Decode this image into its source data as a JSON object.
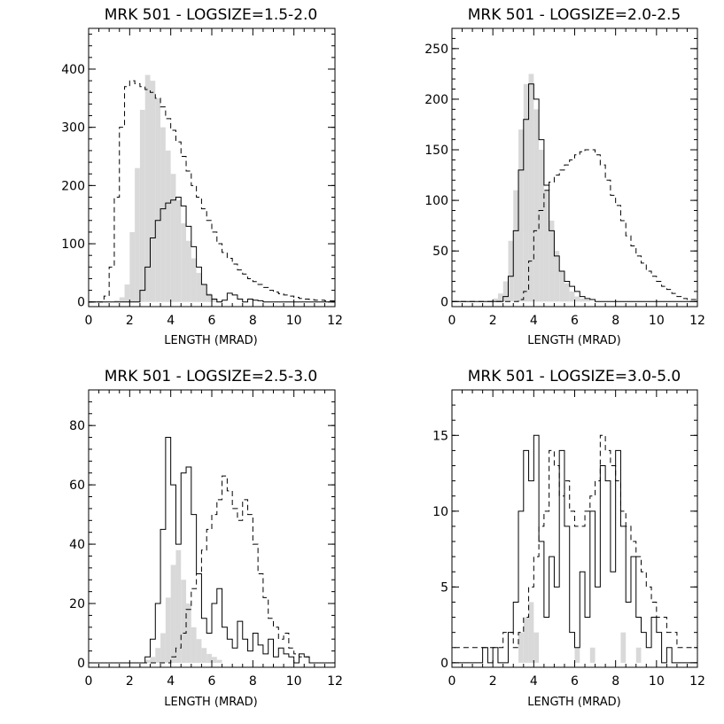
{
  "chart_data": [
    {
      "type": "histogram",
      "title": "MRK 501 - LOGSIZE=1.5-2.0",
      "xlabel": "LENGTH (MRAD)",
      "ylabel": "",
      "xlim": [
        0,
        12
      ],
      "ylim": [
        -8,
        470
      ],
      "xticks": [
        "0",
        "2",
        "4",
        "6",
        "8",
        "10",
        "12"
      ],
      "yticks": [
        "0",
        "100",
        "200",
        "300",
        "400"
      ],
      "bin_start": 0,
      "bin_width": 0.25,
      "series": [
        {
          "style": "shaded",
          "values": [
            0,
            0,
            0,
            0,
            0,
            3,
            8,
            30,
            120,
            230,
            330,
            390,
            380,
            350,
            300,
            260,
            220,
            175,
            135,
            105,
            75,
            50,
            30,
            15,
            5,
            2,
            0,
            0,
            0,
            0,
            0,
            0,
            0,
            0,
            0,
            0,
            0,
            0,
            0,
            0,
            0,
            0,
            0,
            0,
            0,
            0,
            0,
            0
          ]
        },
        {
          "style": "solid",
          "values": [
            0,
            0,
            0,
            0,
            0,
            0,
            0,
            0,
            0,
            0,
            20,
            60,
            110,
            140,
            160,
            170,
            175,
            180,
            165,
            130,
            95,
            60,
            30,
            12,
            5,
            0,
            3,
            15,
            12,
            5,
            0,
            5,
            3,
            2,
            0,
            0,
            0,
            0,
            0,
            0,
            0,
            0,
            0,
            0,
            0,
            0,
            0,
            0
          ]
        },
        {
          "style": "dashed",
          "values": [
            0,
            0,
            0,
            10,
            60,
            180,
            300,
            370,
            380,
            375,
            370,
            365,
            360,
            350,
            335,
            315,
            295,
            275,
            250,
            225,
            200,
            180,
            160,
            140,
            120,
            100,
            85,
            75,
            65,
            55,
            48,
            40,
            35,
            30,
            25,
            20,
            17,
            14,
            12,
            10,
            8,
            6,
            5,
            4,
            3,
            3,
            2,
            2
          ]
        }
      ]
    },
    {
      "type": "histogram",
      "title": "MRK 501 - LOGSIZE=2.0-2.5",
      "xlabel": "LENGTH (MRAD)",
      "ylabel": "",
      "xlim": [
        0,
        12
      ],
      "ylim": [
        -5,
        270
      ],
      "xticks": [
        "0",
        "2",
        "4",
        "6",
        "8",
        "10",
        "12"
      ],
      "yticks": [
        "0",
        "50",
        "100",
        "150",
        "200",
        "250"
      ],
      "bin_start": 0,
      "bin_width": 0.25,
      "series": [
        {
          "style": "shaded",
          "values": [
            0,
            0,
            0,
            0,
            0,
            0,
            0,
            0,
            3,
            8,
            20,
            60,
            110,
            170,
            215,
            225,
            190,
            150,
            110,
            80,
            50,
            30,
            18,
            10,
            5,
            3,
            2,
            0,
            0,
            0,
            0,
            0,
            0,
            0,
            0,
            0,
            0,
            0,
            0,
            0,
            0,
            0,
            0,
            0,
            0,
            0,
            0,
            0
          ]
        },
        {
          "style": "solid",
          "values": [
            0,
            0,
            0,
            0,
            0,
            0,
            0,
            0,
            0,
            0,
            5,
            25,
            70,
            130,
            180,
            215,
            200,
            160,
            115,
            70,
            45,
            30,
            20,
            15,
            10,
            5,
            3,
            2,
            0,
            0,
            0,
            0,
            0,
            0,
            0,
            0,
            0,
            0,
            0,
            0,
            0,
            0,
            0,
            0,
            0,
            0,
            0,
            0
          ]
        },
        {
          "style": "dashed",
          "values": [
            0,
            0,
            0,
            0,
            0,
            0,
            0,
            0,
            0,
            0,
            0,
            0,
            0,
            2,
            10,
            40,
            70,
            90,
            110,
            118,
            125,
            130,
            135,
            140,
            145,
            148,
            150,
            150,
            145,
            135,
            120,
            105,
            95,
            80,
            65,
            55,
            45,
            38,
            30,
            25,
            20,
            15,
            12,
            8,
            5,
            3,
            2,
            2
          ]
        }
      ]
    },
    {
      "type": "histogram",
      "title": "MRK 501 - LOGSIZE=2.5-3.0",
      "xlabel": "LENGTH (MRAD)",
      "ylabel": "",
      "xlim": [
        0,
        12
      ],
      "ylim": [
        -1.5,
        92
      ],
      "xticks": [
        "0",
        "2",
        "4",
        "6",
        "8",
        "10",
        "12"
      ],
      "yticks": [
        "0",
        "20",
        "40",
        "60",
        "80"
      ],
      "bin_start": 0,
      "bin_width": 0.25,
      "series": [
        {
          "style": "shaded",
          "values": [
            0,
            0,
            0,
            0,
            0,
            0,
            0,
            0,
            0,
            0,
            0,
            1,
            2,
            5,
            10,
            22,
            33,
            38,
            28,
            20,
            12,
            8,
            5,
            3,
            2,
            1,
            0,
            0,
            0,
            0,
            0,
            0,
            0,
            0,
            0,
            0,
            0,
            0,
            0,
            0,
            0,
            0,
            0,
            0,
            0,
            0,
            0,
            0
          ]
        },
        {
          "style": "solid",
          "values": [
            0,
            0,
            0,
            0,
            0,
            0,
            0,
            0,
            0,
            0,
            0,
            2,
            8,
            20,
            45,
            76,
            60,
            40,
            64,
            66,
            50,
            30,
            15,
            10,
            20,
            25,
            12,
            8,
            5,
            14,
            8,
            4,
            10,
            6,
            3,
            8,
            2,
            5,
            3,
            2,
            0,
            3,
            2,
            0,
            0,
            0,
            0,
            0
          ]
        },
        {
          "style": "dashed",
          "values": [
            0,
            0,
            0,
            0,
            0,
            0,
            0,
            0,
            0,
            0,
            0,
            0,
            0,
            0,
            0,
            0,
            2,
            5,
            10,
            18,
            25,
            30,
            38,
            45,
            50,
            55,
            63,
            58,
            52,
            48,
            55,
            50,
            40,
            30,
            22,
            15,
            12,
            8,
            10,
            5,
            3,
            2,
            2,
            0,
            0,
            0,
            0,
            0
          ]
        }
      ]
    },
    {
      "type": "histogram",
      "title": "MRK 501 - LOGSIZE=3.0-5.0",
      "xlabel": "LENGTH (MRAD)",
      "ylabel": "",
      "xlim": [
        0,
        12
      ],
      "ylim": [
        -0.3,
        18
      ],
      "xticks": [
        "0",
        "2",
        "4",
        "6",
        "8",
        "10",
        "12"
      ],
      "yticks": [
        "0",
        "5",
        "10",
        "15"
      ],
      "bin_start": 0,
      "bin_width": 0.25,
      "series": [
        {
          "style": "shaded",
          "values": [
            0,
            0,
            0,
            0,
            0,
            0,
            0,
            0,
            0,
            0,
            0,
            0,
            0,
            2,
            3,
            4,
            2,
            0,
            0,
            0,
            0,
            0,
            0,
            0,
            1,
            0,
            0,
            1,
            0,
            0,
            0,
            0,
            0,
            2,
            0,
            0,
            1,
            0,
            0,
            0,
            0,
            0,
            0,
            0,
            0,
            0,
            0,
            0
          ]
        },
        {
          "style": "solid",
          "values": [
            0,
            0,
            0,
            0,
            0,
            0,
            1,
            0,
            1,
            0,
            0,
            2,
            4,
            10,
            14,
            12,
            15,
            8,
            3,
            7,
            5,
            14,
            9,
            2,
            1,
            6,
            3,
            10,
            5,
            13,
            12,
            6,
            14,
            9,
            4,
            7,
            3,
            2,
            1,
            3,
            2,
            0,
            1,
            0,
            0,
            0,
            0,
            0
          ]
        },
        {
          "style": "dashed",
          "values": [
            1,
            1,
            1,
            1,
            1,
            1,
            1,
            1,
            1,
            1,
            2,
            2,
            1,
            2,
            3,
            5,
            7,
            9,
            10,
            14,
            13,
            11,
            12,
            10,
            9,
            9,
            10,
            11,
            12,
            15,
            14,
            13,
            12,
            10,
            9,
            8,
            7,
            6,
            5,
            4,
            3,
            3,
            2,
            2,
            1,
            1,
            1,
            1
          ]
        }
      ]
    }
  ]
}
